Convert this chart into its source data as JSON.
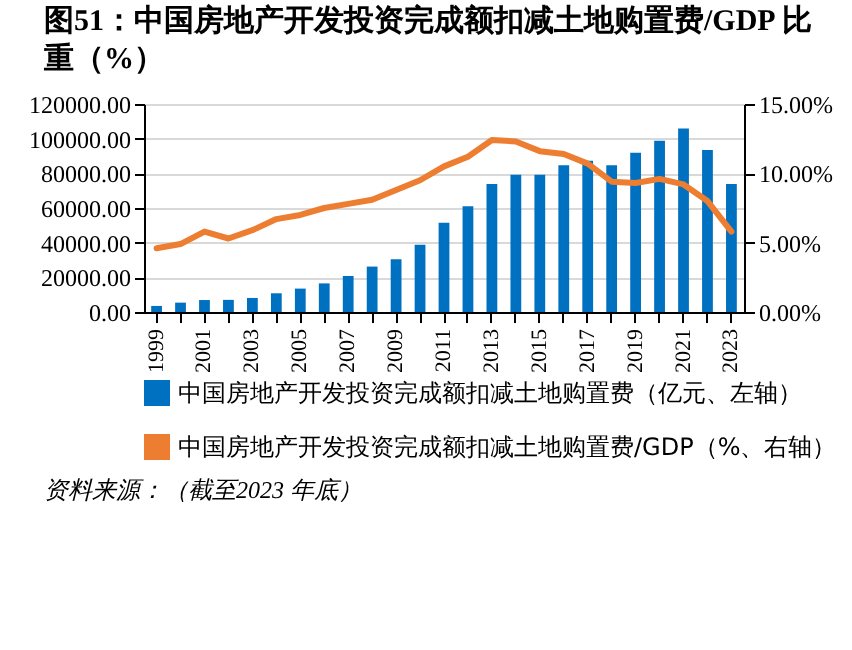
{
  "chart_data": {
    "type": "bar",
    "title": "图51：中国房地产开发投资完成额扣减土地购置费/GDP 比重（%）",
    "categories": [
      "1999",
      null,
      "2001",
      null,
      "2003",
      null,
      "2005",
      null,
      "2007",
      null,
      "2009",
      null,
      "2011",
      null,
      "2013",
      null,
      "2015",
      null,
      "2017",
      null,
      "2019",
      null,
      "2021",
      null,
      "2023"
    ],
    "series": [
      {
        "name": "中国房地产开发投资完成额扣减土地购置费（亿元、左轴）",
        "color": "#0070c0",
        "values": [
          3500,
          5400,
          6900,
          7000,
          8100,
          10800,
          13500,
          16500,
          20800,
          26200,
          30400,
          38800,
          51500,
          61000,
          73800,
          79200,
          79200,
          84600,
          87300,
          84600,
          91900,
          98800,
          105800,
          93500,
          73800
        ]
      },
      {
        "name": "中国房地产开发投资完成额扣减土地购置费/GDP（%、右轴）",
        "type": "line",
        "axis": "y2",
        "color": "#ed7d31",
        "values": [
          4.6,
          4.9,
          5.8,
          5.3,
          5.9,
          6.7,
          7.0,
          7.5,
          7.8,
          8.1,
          8.8,
          9.5,
          10.5,
          11.2,
          12.4,
          12.3,
          11.6,
          11.4,
          10.7,
          9.4,
          9.3,
          9.6,
          9.2,
          8.0,
          5.8
        ]
      }
    ],
    "ylim": [
      0,
      120000
    ],
    "yticks": [
      {
        "value": 0,
        "label": "0.00"
      },
      {
        "value": 20000,
        "label": "20000.00"
      },
      {
        "value": 40000,
        "label": "40000.00"
      },
      {
        "value": 60000,
        "label": "60000.00"
      },
      {
        "value": 80000,
        "label": "80000.00"
      },
      {
        "value": 100000,
        "label": "100000.00"
      },
      {
        "value": 120000,
        "label": "120000.00"
      }
    ],
    "y2lim": [
      0,
      15
    ],
    "y2ticks": [
      {
        "value": 0,
        "label": "0.00%"
      },
      {
        "value": 5,
        "label": "5.00%"
      },
      {
        "value": 10,
        "label": "10.00%"
      },
      {
        "value": 15,
        "label": "15.00%"
      }
    ],
    "grid": "y",
    "legend": "bottom",
    "annotations": [
      "资料来源：（截至2023 年底）"
    ]
  }
}
